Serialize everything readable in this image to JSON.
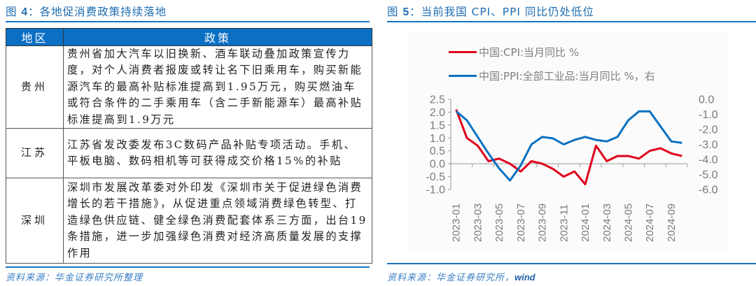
{
  "left_figure": {
    "title_prefix": "图 ",
    "title_num": "4",
    "title_text": "：各地促消费政策持续落地",
    "table": {
      "headers": [
        "地区",
        "政策"
      ],
      "rows": [
        {
          "region": "贵州",
          "policy": "贵州省加大汽车以旧换新、酒车联动叠加政策宣传力度，对个人消费者报废或转让名下旧乘用车，购买新能源汽车的最高补贴标准提高到1.95万元，购买燃油车或符合条件的二手乘用车（含二手新能源车）最高补贴标准提高到1.9万元"
        },
        {
          "region": "江苏",
          "policy": "江苏省发改委发布3C数码产品补贴专项活动。手机、平板电脑、数码相机等可获得成交价格15%的补贴"
        },
        {
          "region": "深圳",
          "policy": "深圳市发展改革委对外印发《深圳市关于促进绿色消费增长的若干措施》，从促进重点领域消费绿色转型、打造绿色供应链、健全绿色消费配套体系三方面，出台19条措施，进一步加强绿色消费对经济高质量发展的支撑作用"
        }
      ]
    },
    "source": "资料来源：华金证券研究所整理"
  },
  "right_figure": {
    "title_prefix": "图 ",
    "title_num": "5",
    "title_text": "：当前我国 CPI、PPI 同比仍处低位",
    "source_prefix": "资料来源：华金证券研究所，",
    "source_suffix": "wind"
  },
  "chart_data": {
    "type": "line",
    "title": "当前我国 CPI、PPI 同比仍处低位",
    "x": [
      "2023-01",
      "2023-02",
      "2023-03",
      "2023-04",
      "2023-05",
      "2023-06",
      "2023-07",
      "2023-08",
      "2023-09",
      "2023-10",
      "2023-11",
      "2023-12",
      "2024-01",
      "2024-02",
      "2024-03",
      "2024-04",
      "2024-05",
      "2024-06",
      "2024-07",
      "2024-08",
      "2024-09",
      "2024-10"
    ],
    "x_tick_labels": [
      "2023-01",
      "2023-03",
      "2023-05",
      "2023-07",
      "2023-09",
      "2023-11",
      "2024-01",
      "2024-03",
      "2024-05",
      "2024-07",
      "2024-09"
    ],
    "series": [
      {
        "name": "中国:CPI:当月同比 %",
        "axis": "left",
        "color": "#e0001b",
        "values": [
          2.1,
          1.0,
          0.7,
          0.1,
          0.2,
          0.0,
          -0.3,
          0.1,
          0.0,
          -0.2,
          -0.5,
          -0.3,
          -0.8,
          0.7,
          0.1,
          0.3,
          0.3,
          0.2,
          0.5,
          0.6,
          0.4,
          0.3
        ]
      },
      {
        "name": "中国:PPI:全部工业品:当月同比 %，右",
        "axis": "right",
        "color": "#0a70c0",
        "values": [
          -0.8,
          -1.4,
          -2.5,
          -3.6,
          -4.6,
          -5.4,
          -4.4,
          -3.0,
          -2.5,
          -2.6,
          -3.0,
          -2.7,
          -2.5,
          -2.7,
          -2.8,
          -2.5,
          -1.4,
          -0.8,
          -0.8,
          -1.8,
          -2.8,
          -2.9
        ]
      }
    ],
    "left_axis": {
      "ylim": [
        -1.0,
        2.5
      ],
      "ticks": [
        "2.5",
        "2.0",
        "1.5",
        "1.0",
        "0.5",
        "0.0",
        "-0.5",
        "-1.0"
      ]
    },
    "right_axis": {
      "ylim": [
        -6.0,
        0.0
      ],
      "ticks": [
        "0.0",
        "-1.0",
        "-2.0",
        "-3.0",
        "-4.0",
        "-5.0",
        "-6.0"
      ]
    },
    "xlabel": "",
    "ylabel": "",
    "grid": false,
    "legend_position": "top"
  }
}
